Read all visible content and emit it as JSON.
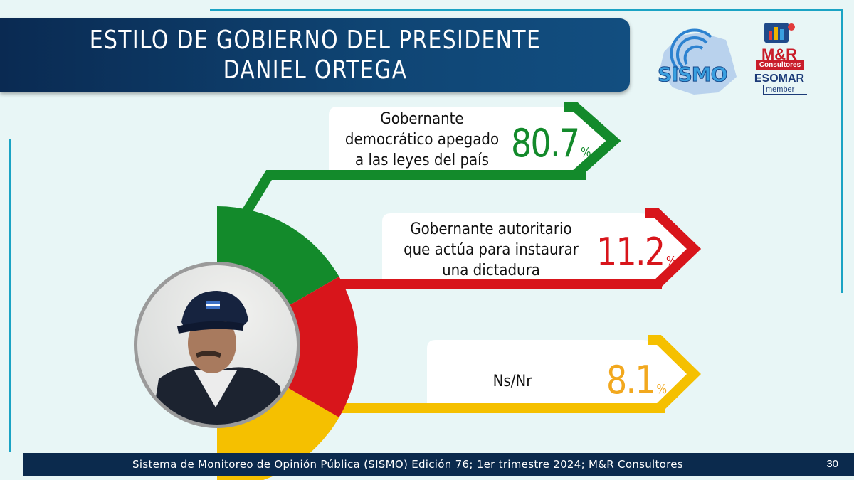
{
  "title": "ESTILO DE GOBIERNO DEL PRESIDENTE DANIEL ORTEGA",
  "logos": {
    "sismo": "SISMO",
    "mr_brand": "M&R",
    "mr_sub": "Consultores",
    "esomar": "ESOMAR",
    "member": "member"
  },
  "chart_data": {
    "type": "pie",
    "categories": [
      "Gobernante democrático apegado a las leyes del país",
      "Gobernante autoritario que actúa para instaurar una dictadura",
      "Ns/Nr"
    ],
    "values": [
      80.7,
      11.2,
      8.1
    ],
    "value_labels": [
      "80.7",
      "11.2",
      "8.1"
    ],
    "unit": "%",
    "colors": [
      "#138a2b",
      "#d8151b",
      "#f5c000"
    ],
    "value_colors": [
      "#138a2b",
      "#d8151b",
      "#f2a81e"
    ],
    "label_lines": [
      [
        "Gobernante",
        "democrático apegado",
        "a las leyes del país"
      ],
      [
        "Gobernante autoritario",
        "que actúa para instaurar",
        "una dictadura"
      ],
      [
        "Ns/Nr"
      ]
    ]
  },
  "footer": {
    "source": "Sistema de Monitoreo de Opinión Pública (SISMO) Edición 76; 1er trimestre 2024; M&R Consultores",
    "page": "30"
  }
}
